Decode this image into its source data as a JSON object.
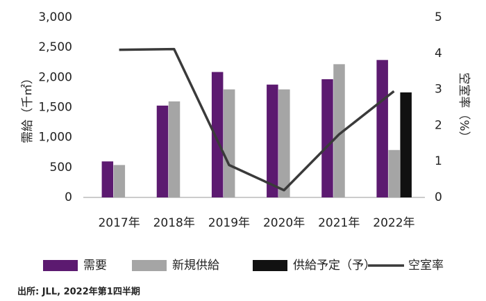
{
  "chart_data": {
    "type": "bar",
    "categories": [
      "2017年",
      "2018年",
      "2019年",
      "2020年",
      "2021年",
      "2022年"
    ],
    "series": [
      {
        "name": "需要",
        "color": "#5c1a70",
        "values": [
          600,
          1530,
          2090,
          1880,
          1970,
          2290
        ]
      },
      {
        "name": "新規供給",
        "color": "#a5a5a5",
        "values": [
          540,
          1600,
          1800,
          1800,
          2220,
          790
        ]
      },
      {
        "name": "供給予定（予）",
        "color": "#111111",
        "values": [
          null,
          null,
          null,
          null,
          null,
          1750
        ]
      },
      {
        "name": "空室率",
        "color": "#3a3a3a",
        "type": "line",
        "axis": "y2",
        "values": [
          4.1,
          4.12,
          0.9,
          0.2,
          1.75,
          2.95
        ]
      }
    ],
    "y_label": "需給（千㎡）",
    "y2_label": "空室率（%）",
    "ylim": [
      0,
      3000
    ],
    "yticks": [
      0,
      500,
      {
        "value": 1000,
        "label": "1,000"
      },
      {
        "value": 1500,
        "label": "1,500"
      },
      {
        "value": 2000,
        "label": "2,000"
      },
      {
        "value": 2500,
        "label": "2,500"
      },
      {
        "value": 3000,
        "label": "3,000"
      }
    ],
    "y2lim": [
      0,
      5
    ],
    "y2ticks": [
      0,
      1,
      2,
      3,
      4,
      5
    ],
    "grid": false,
    "legend": "bottom",
    "source": "出所: JLL, 2022年第1四半期"
  }
}
